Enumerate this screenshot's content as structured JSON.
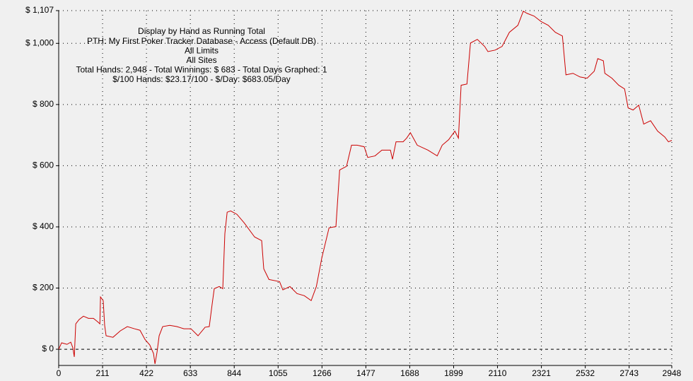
{
  "chart_data": {
    "type": "line",
    "annotations": [
      "Display by Hand as Running Total",
      "PTH: My First Poker Tracker Database - Access (Default DB)",
      "All Limits",
      "All Sites",
      "Total Hands: 2,948 - Total Winnings: $ 683 - Total Days Graphed: 1",
      "$/100 Hands: $23.17/100 - $/Day: $683.05/Day"
    ],
    "x": [
      0,
      14,
      40,
      58,
      68,
      75,
      82,
      98,
      119,
      143,
      167,
      187,
      198,
      201,
      214,
      221,
      228,
      261,
      296,
      330,
      364,
      391,
      415,
      438,
      456,
      463,
      473,
      483,
      500,
      534,
      568,
      602,
      636,
      670,
      704,
      724,
      738,
      748,
      772,
      789,
      799,
      810,
      827,
      857,
      892,
      942,
      976,
      986,
      1011,
      1062,
      1078,
      1112,
      1146,
      1181,
      1214,
      1239,
      1265,
      1300,
      1333,
      1351,
      1384,
      1408,
      1435,
      1469,
      1486,
      1521,
      1554,
      1595,
      1605,
      1622,
      1656,
      1673,
      1691,
      1724,
      1775,
      1820,
      1844,
      1875,
      1905,
      1922,
      1935,
      1963,
      1980,
      2013,
      2048,
      2064,
      2099,
      2132,
      2167,
      2208,
      2234,
      2252,
      2286,
      2320,
      2354,
      2388,
      2422,
      2439,
      2473,
      2507,
      2541,
      2575,
      2592,
      2619,
      2626,
      2660,
      2693,
      2721,
      2738,
      2762,
      2789,
      2813,
      2846,
      2880,
      2914,
      2932,
      2948
    ],
    "series": [
      {
        "color": "#cc0000",
        "values": [
          0,
          21,
          16,
          23,
          5,
          -25,
          83,
          97,
          108,
          101,
          101,
          90,
          83,
          171,
          159,
          78,
          44,
          39,
          60,
          74,
          67,
          62,
          32,
          14,
          -14,
          -48,
          -9,
          44,
          74,
          78,
          74,
          67,
          67,
          44,
          72,
          74,
          148,
          198,
          205,
          198,
          378,
          448,
          452,
          441,
          413,
          367,
          355,
          263,
          228,
          221,
          194,
          205,
          182,
          175,
          159,
          205,
          298,
          397,
          401,
          586,
          598,
          667,
          667,
          662,
          627,
          632,
          651,
          651,
          621,
          678,
          678,
          690,
          708,
          667,
          651,
          632,
          667,
          685,
          713,
          690,
          863,
          867,
          1001,
          1013,
          990,
          973,
          978,
          990,
          1036,
          1059,
          1105,
          1098,
          1089,
          1071,
          1059,
          1036,
          1024,
          897,
          902,
          890,
          886,
          909,
          950,
          943,
          902,
          886,
          863,
          851,
          789,
          782,
          798,
          736,
          747,
          713,
          694,
          678,
          683
        ]
      }
    ],
    "xlim": [
      0,
      2948
    ],
    "ylim": [
      -53,
      1107
    ],
    "xticks": [
      0,
      211,
      422,
      633,
      844,
      1055,
      1266,
      1477,
      1688,
      1899,
      2110,
      2321,
      2532,
      2743,
      2948
    ],
    "yticks": [
      {
        "value": 0,
        "label": "$ 0"
      },
      {
        "value": 200,
        "label": "$ 200"
      },
      {
        "value": 400,
        "label": "$ 400"
      },
      {
        "value": 600,
        "label": "$ 600"
      },
      {
        "value": 800,
        "label": "$ 800"
      },
      {
        "value": 1000,
        "label": "$ 1,000"
      },
      {
        "value": 1107,
        "label": "$ 1,107"
      }
    ],
    "grid": true
  }
}
